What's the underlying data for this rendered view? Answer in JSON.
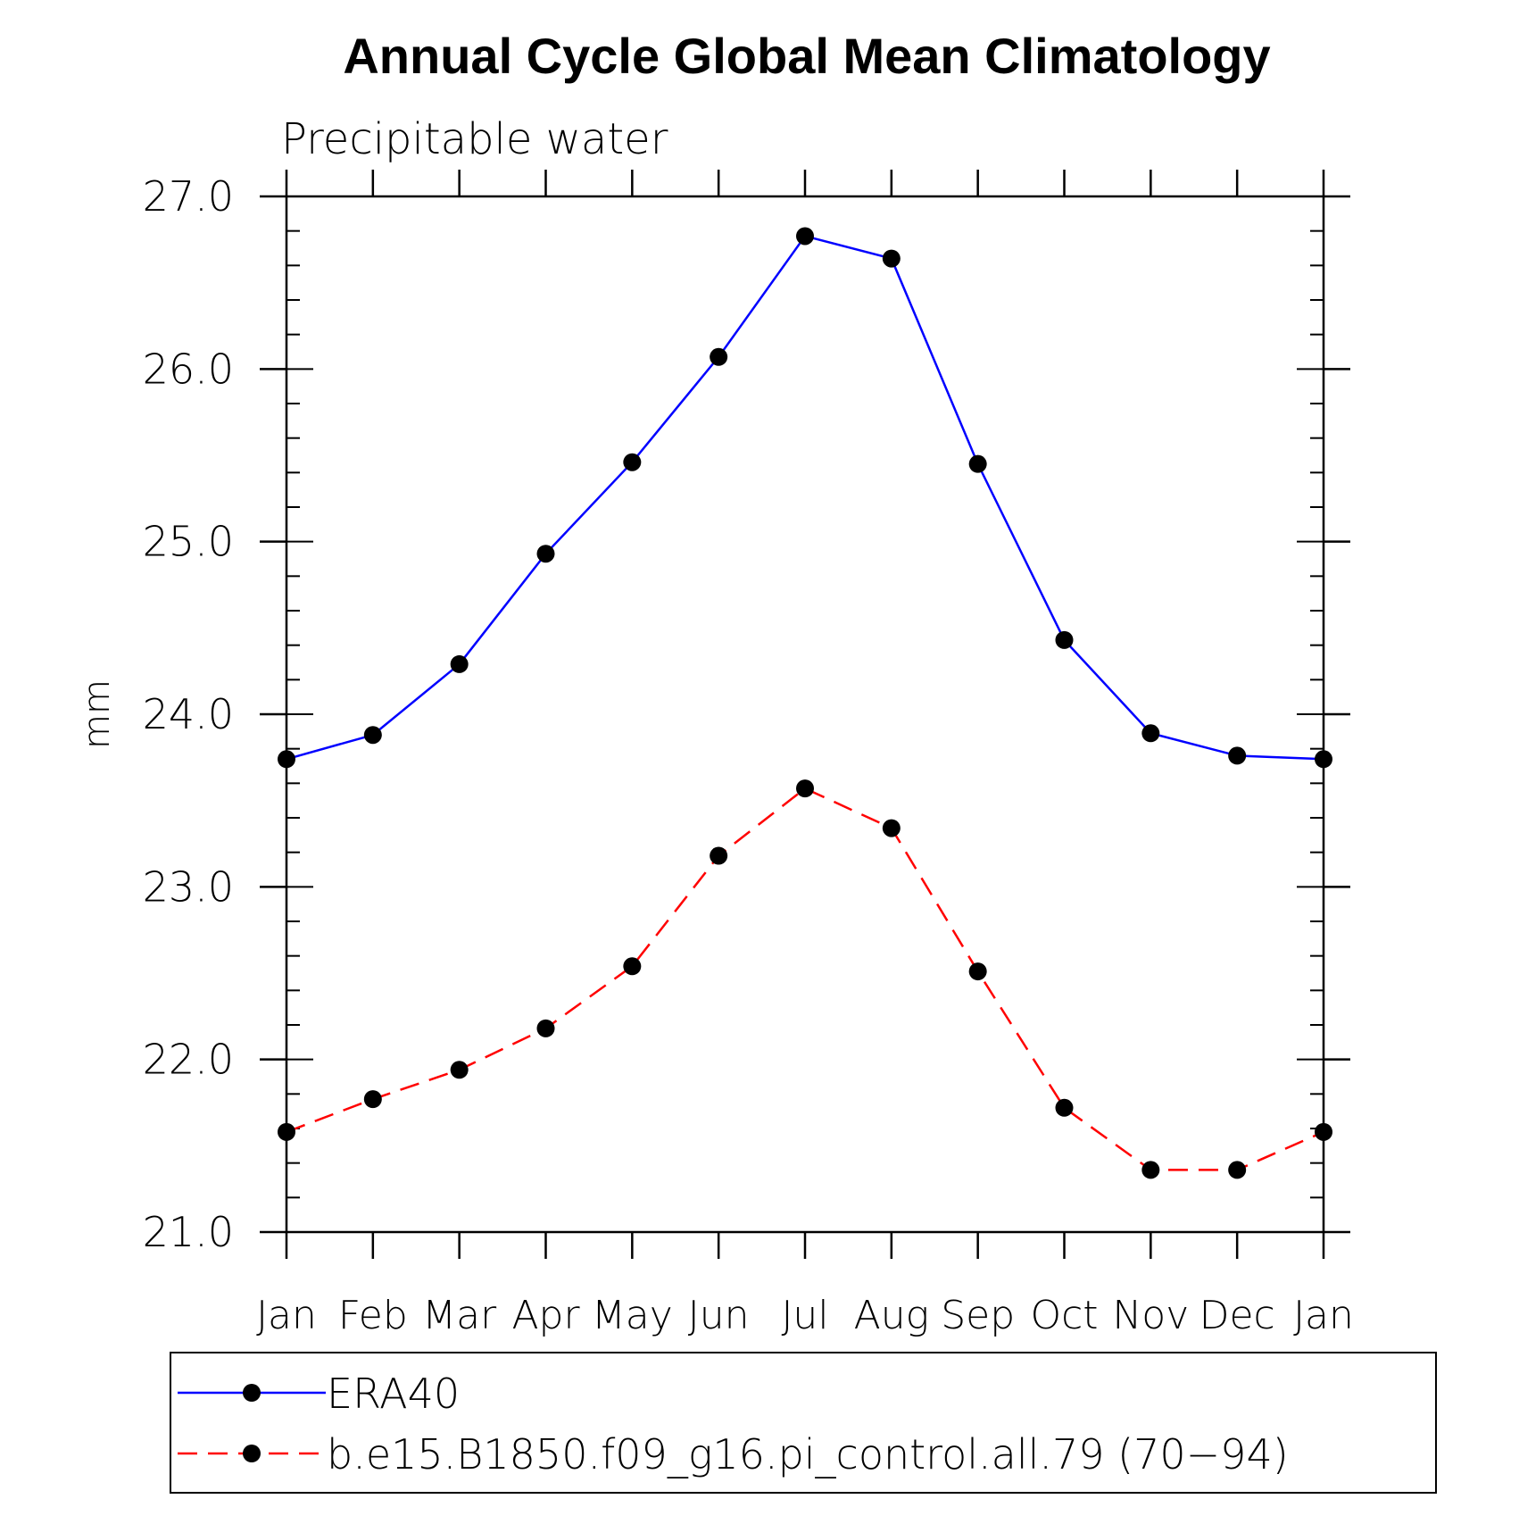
{
  "chart_data": {
    "type": "line",
    "title": "Annual Cycle Global Mean Climatology",
    "subtitle": "Precipitable water",
    "xlabel": "",
    "ylabel": "mm",
    "categories": [
      "Jan",
      "Feb",
      "Mar",
      "Apr",
      "May",
      "Jun",
      "Jul",
      "Aug",
      "Sep",
      "Oct",
      "Nov",
      "Dec",
      "Jan"
    ],
    "ylim": [
      21.0,
      27.0
    ],
    "yticks": [
      "21.0",
      "22.0",
      "23.0",
      "24.0",
      "25.0",
      "26.0",
      "27.0"
    ],
    "grid": false,
    "legend_position": "bottom",
    "series": [
      {
        "name": "ERA40",
        "color": "#0000ff",
        "line_style": "solid",
        "marker": "filled-circle",
        "values": [
          23.74,
          23.88,
          24.29,
          24.93,
          25.46,
          26.07,
          26.77,
          26.64,
          25.45,
          24.43,
          23.89,
          23.76,
          23.74
        ]
      },
      {
        "name": "b.e15.B1850.f09_g16.pi_control.all.79 (70−94)",
        "color": "#ff0000",
        "line_style": "dashed",
        "marker": "filled-circle",
        "values": [
          21.58,
          21.77,
          21.94,
          22.18,
          22.54,
          23.18,
          23.57,
          23.34,
          22.51,
          21.72,
          21.36,
          21.36,
          21.58
        ]
      }
    ]
  }
}
